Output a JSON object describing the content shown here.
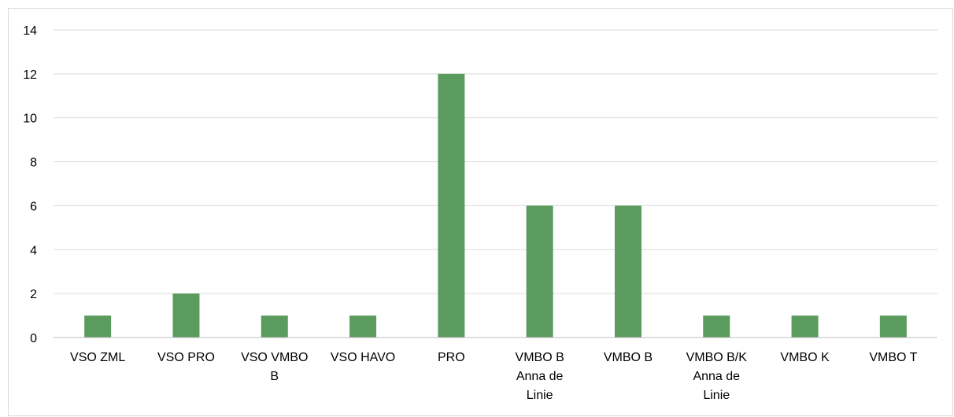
{
  "chart_data": {
    "type": "bar",
    "categories": [
      [
        "VSO ZML"
      ],
      [
        "VSO PRO"
      ],
      [
        "VSO VMBO",
        "B"
      ],
      [
        "VSO HAVO"
      ],
      [
        "PRO"
      ],
      [
        "VMBO B",
        "Anna de",
        "Linie"
      ],
      [
        "VMBO B"
      ],
      [
        "VMBO B/K",
        "Anna de",
        "Linie"
      ],
      [
        "VMBO K"
      ],
      [
        "VMBO T"
      ]
    ],
    "values": [
      1,
      2,
      1,
      1,
      12,
      6,
      6,
      1,
      1,
      1
    ],
    "title": "",
    "xlabel": "",
    "ylabel": "",
    "ylim": [
      0,
      14
    ],
    "yticks": [
      "0",
      "2",
      "4",
      "6",
      "8",
      "10",
      "12",
      "14"
    ],
    "grid": true,
    "legend": "none",
    "colors": {
      "bar": "#5b9b5d",
      "grid": "#d9d9d9",
      "axis": "#bfbfbf",
      "text": "#000000"
    }
  }
}
